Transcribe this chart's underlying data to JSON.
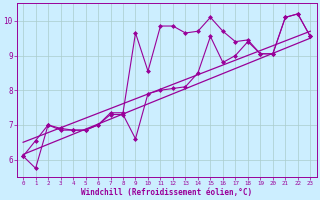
{
  "xlabel": "Windchill (Refroidissement éolien,°C)",
  "bg_color": "#cceeff",
  "line_color": "#990099",
  "grid_color": "#aacccc",
  "xlim": [
    -0.5,
    23.5
  ],
  "ylim": [
    5.5,
    10.5
  ],
  "yticks": [
    6,
    7,
    8,
    9,
    10
  ],
  "xticks": [
    0,
    1,
    2,
    3,
    4,
    5,
    6,
    7,
    8,
    9,
    10,
    11,
    12,
    13,
    14,
    15,
    16,
    17,
    18,
    19,
    20,
    21,
    22,
    23
  ],
  "series1_x": [
    0,
    1,
    2,
    3,
    4,
    5,
    6,
    7,
    8,
    9,
    10,
    11,
    12,
    13,
    14,
    15,
    16,
    17,
    18,
    19,
    20,
    21,
    22,
    23
  ],
  "series1_y": [
    6.1,
    6.55,
    7.0,
    6.9,
    6.85,
    6.85,
    7.0,
    7.35,
    7.35,
    9.65,
    8.55,
    9.85,
    9.85,
    9.65,
    9.7,
    10.1,
    9.7,
    9.4,
    9.45,
    9.05,
    9.05,
    10.1,
    10.2,
    9.55
  ],
  "series2_x": [
    0,
    1,
    2,
    3,
    4,
    5,
    6,
    7,
    8,
    9,
    10,
    11,
    12,
    13,
    14,
    15,
    16,
    17,
    18,
    19,
    20,
    21,
    22,
    23
  ],
  "series2_y": [
    6.1,
    5.75,
    7.0,
    6.85,
    6.85,
    6.85,
    7.0,
    7.3,
    7.3,
    6.6,
    7.9,
    8.0,
    8.05,
    8.1,
    8.5,
    9.55,
    8.8,
    9.0,
    9.4,
    9.05,
    9.05,
    10.1,
    10.2,
    9.55
  ],
  "trend1_x": [
    0,
    23
  ],
  "trend1_y": [
    6.15,
    9.5
  ],
  "trend2_x": [
    0,
    23
  ],
  "trend2_y": [
    6.5,
    9.7
  ]
}
